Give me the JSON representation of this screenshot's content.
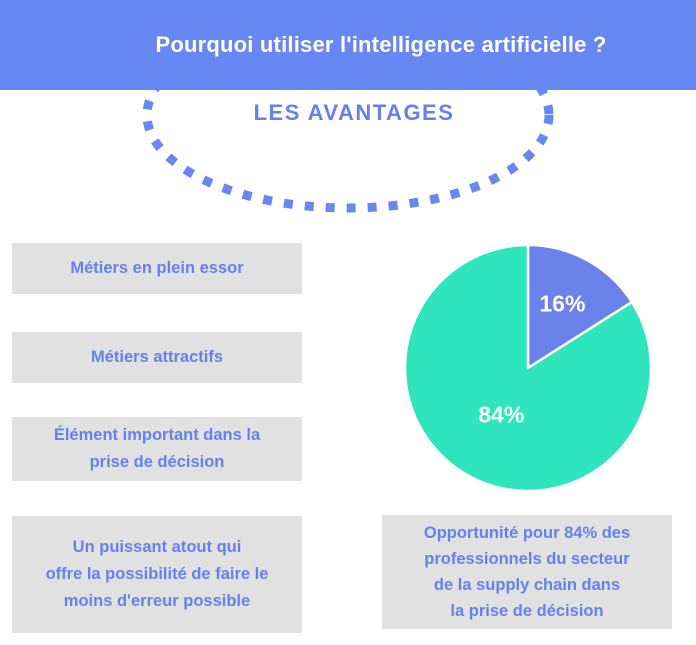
{
  "title": "Pourquoi utiliser l'intelligence artificielle ?",
  "subtitle": "LES AVANTAGES",
  "benefits": [
    {
      "label": "Métiers en plein essor"
    },
    {
      "label": "Métiers attractifs"
    },
    {
      "label": "Élément important dans la\nprise de décision"
    },
    {
      "label": "Un puissant atout qui\noffre la possibilité de faire le\nmoins d'erreur possible"
    }
  ],
  "caption": "Opportunité pour 84% des\nprofessionnels du secteur\nde la supply chain dans\nla prise de décision",
  "colors": {
    "banner_bg": "#6787f2",
    "accent_text": "#6282ed",
    "box_bg": "#e1e1e1",
    "dotted_ellipse": "#6787f2",
    "pie_divider": "#ffffff",
    "pie_label": "#ffffff"
  },
  "chart_data": {
    "type": "pie",
    "title": "",
    "slices": [
      {
        "label": "16%",
        "value": 16,
        "color": "#6b82ea"
      },
      {
        "label": "84%",
        "value": 84,
        "color": "#2fe5be"
      }
    ],
    "start_angle_deg": 0,
    "direction": "clockwise",
    "labels_inside": true,
    "legend": "none"
  }
}
